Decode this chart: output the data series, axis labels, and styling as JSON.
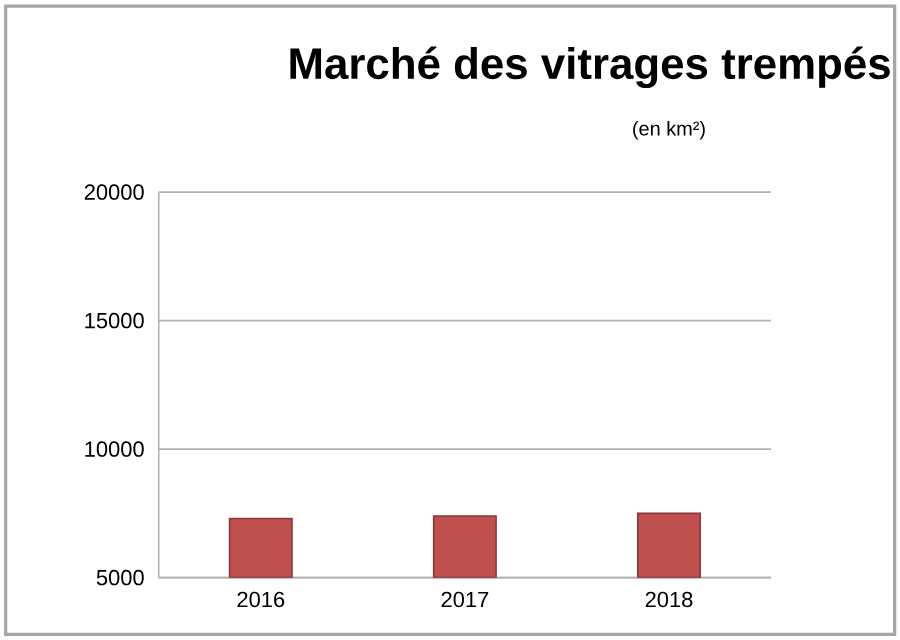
{
  "chart_data": {
    "type": "bar",
    "title": "Marché des vitrages trempés",
    "subtitle": "(en km²)",
    "categories": [
      "2016",
      "2017",
      "2018"
    ],
    "values": [
      7300,
      7400,
      7500
    ],
    "color": "#c0504d",
    "ylim": [
      5000,
      20000
    ],
    "yticks": [
      5000,
      10000,
      15000,
      20000
    ],
    "grid": "y"
  }
}
